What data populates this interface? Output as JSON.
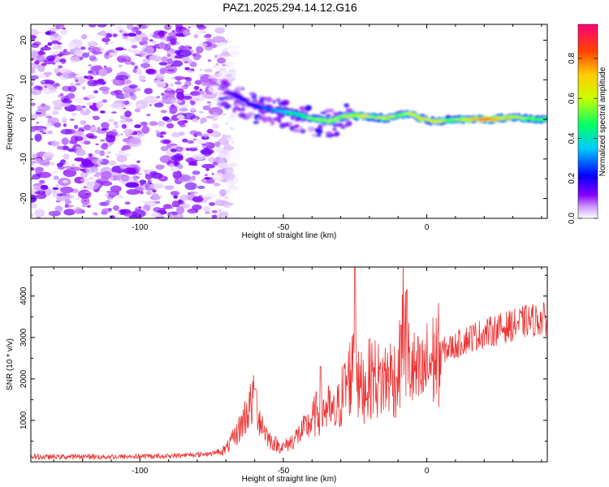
{
  "title": "PAZ1.2025.294.14.12.G16",
  "chart_data": [
    {
      "type": "heatmap",
      "xlabel": "Height of straight line (km)",
      "ylabel": "Frequency (Hz)",
      "xlim": [
        -138,
        42
      ],
      "ylim": [
        -25,
        24
      ],
      "xticks": [
        -100,
        -50,
        0
      ],
      "yticks": [
        20,
        10,
        0,
        -10,
        -20
      ],
      "colorbar": {
        "label": "Normalized spectral amplitude",
        "range": [
          0,
          0.97
        ],
        "ticks": [
          0.0,
          0.2,
          0.4,
          0.6,
          0.8
        ]
      },
      "noise_region_x": [
        -138,
        -72
      ],
      "ridge": [
        {
          "x": -70,
          "f": 7,
          "a": 0.12
        },
        {
          "x": -66,
          "f": 6,
          "a": 0.22
        },
        {
          "x": -62,
          "f": 4,
          "a": 0.18
        },
        {
          "x": -58,
          "f": 3,
          "a": 0.25
        },
        {
          "x": -54,
          "f": 2.5,
          "a": 0.3
        },
        {
          "x": -50,
          "f": 2,
          "a": 0.38
        },
        {
          "x": -46,
          "f": 1.5,
          "a": 0.45
        },
        {
          "x": -42,
          "f": 0.5,
          "a": 0.5
        },
        {
          "x": -38,
          "f": 0,
          "a": 0.55
        },
        {
          "x": -34,
          "f": -0.5,
          "a": 0.6
        },
        {
          "x": -30,
          "f": 0.5,
          "a": 0.55
        },
        {
          "x": -26,
          "f": 1,
          "a": 0.65
        },
        {
          "x": -22,
          "f": 0.8,
          "a": 0.7
        },
        {
          "x": -18,
          "f": 0.5,
          "a": 0.6
        },
        {
          "x": -14,
          "f": 0.3,
          "a": 0.65
        },
        {
          "x": -10,
          "f": 1,
          "a": 0.55
        },
        {
          "x": -6,
          "f": 1.5,
          "a": 0.6
        },
        {
          "x": -2,
          "f": 0.2,
          "a": 0.7
        },
        {
          "x": 2,
          "f": -0.5,
          "a": 0.65
        },
        {
          "x": 6,
          "f": -0.3,
          "a": 0.6
        },
        {
          "x": 10,
          "f": 0,
          "a": 0.55
        },
        {
          "x": 14,
          "f": 0,
          "a": 0.7
        },
        {
          "x": 18,
          "f": 0,
          "a": 0.85
        },
        {
          "x": 22,
          "f": 0,
          "a": 0.9
        },
        {
          "x": 26,
          "f": 0.3,
          "a": 0.75
        },
        {
          "x": 30,
          "f": 0.5,
          "a": 0.65
        },
        {
          "x": 34,
          "f": 0.3,
          "a": 0.6
        },
        {
          "x": 38,
          "f": 0,
          "a": 0.55
        },
        {
          "x": 42,
          "f": 0,
          "a": 0.5
        }
      ]
    },
    {
      "type": "line",
      "xlabel": "Height of straight line (km)",
      "ylabel": "SNR (10 * v/v)",
      "xlim": [
        -138,
        42
      ],
      "ylim": [
        0,
        4700
      ],
      "xticks": [
        -100,
        -50,
        0
      ],
      "yticks": [
        1000,
        2000,
        3000,
        4000
      ],
      "series": [
        {
          "color": "#ee3333",
          "x": [
            -138,
            -130,
            -120,
            -110,
            -100,
            -90,
            -80,
            -75,
            -70,
            -66,
            -62,
            -60,
            -58,
            -55,
            -52,
            -50,
            -47,
            -44,
            -41,
            -38,
            -35,
            -32,
            -29,
            -26,
            -25,
            -24,
            -22,
            -19,
            -16,
            -13,
            -10,
            -8,
            -7,
            -5,
            -2,
            0,
            3,
            6,
            10,
            15,
            20,
            25,
            30,
            35,
            42
          ],
          "y": [
            120,
            120,
            130,
            120,
            130,
            140,
            180,
            200,
            300,
            700,
            1300,
            1500,
            1000,
            550,
            400,
            350,
            500,
            700,
            900,
            1200,
            1300,
            1100,
            1700,
            2200,
            4500,
            1800,
            1800,
            2100,
            1900,
            2100,
            2000,
            3500,
            2500,
            2200,
            2000,
            2300,
            2500,
            2700,
            2800,
            3000,
            3100,
            3200,
            3300,
            3400,
            3450
          ],
          "spikes": [
            {
              "x": -25,
              "y": 4700
            },
            {
              "x": -7,
              "y": 4150
            },
            {
              "x": -9,
              "y": 3300
            },
            {
              "x": -37,
              "y": 2300
            },
            {
              "x": -60,
              "y": 1750
            }
          ]
        }
      ]
    }
  ]
}
